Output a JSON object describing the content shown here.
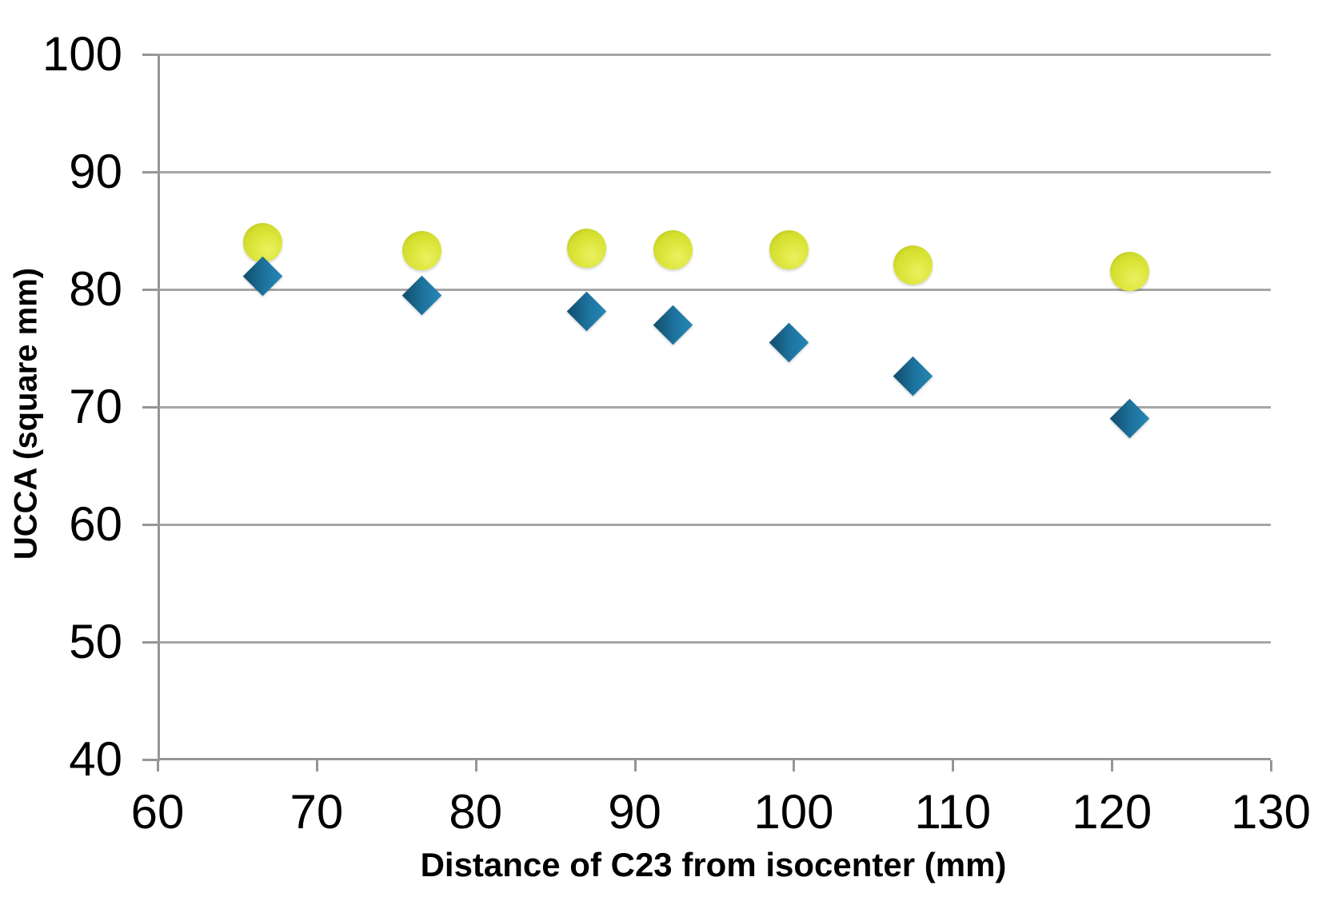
{
  "chart_data": {
    "type": "scatter",
    "title": "",
    "xlabel": "Distance of C23 from isocenter (mm)",
    "ylabel": "UCCA (square mm)",
    "xlim": [
      60,
      130
    ],
    "ylim": [
      40,
      100
    ],
    "x_ticks": [
      60,
      70,
      80,
      90,
      100,
      110,
      120,
      130
    ],
    "y_ticks": [
      40,
      50,
      60,
      70,
      80,
      90,
      100
    ],
    "grid": "horizontal-only",
    "legend": "none",
    "x": [
      66.6,
      76.6,
      87.0,
      92.4,
      99.7,
      107.5,
      121.1
    ],
    "series": [
      {
        "name": "upper-series-circles",
        "marker": "circle",
        "color": "#d9e233",
        "values": [
          84.0,
          83.3,
          83.5,
          83.4,
          83.4,
          82.1,
          81.5
        ]
      },
      {
        "name": "lower-series-diamonds",
        "marker": "diamond",
        "color": "#1b6e99",
        "values": [
          81.1,
          79.5,
          78.1,
          77.0,
          75.5,
          72.6,
          69.0
        ]
      }
    ],
    "colors": {
      "gridline": "#a6a6a6",
      "axis": "#969696",
      "text": "#000000",
      "background": "#ffffff"
    }
  }
}
